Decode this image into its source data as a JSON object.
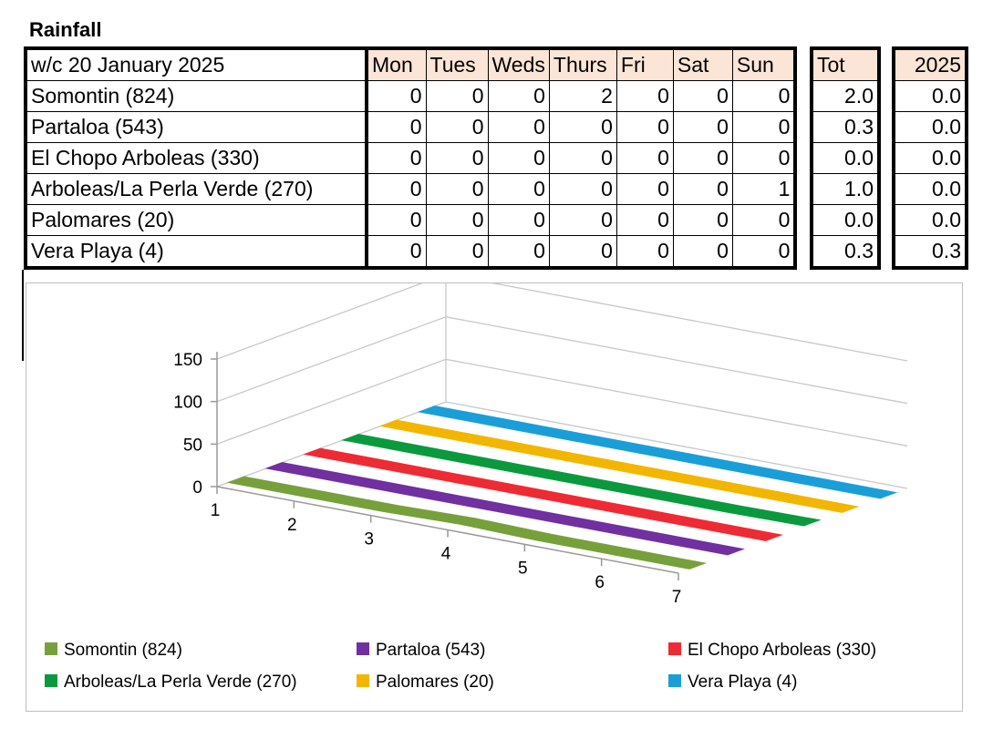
{
  "title": "Rainfall",
  "table": {
    "week_label": "w/c 20 January 2025",
    "days": [
      "Mon",
      "Tues",
      "Weds",
      "Thurs",
      "Fri",
      "Sat",
      "Sun"
    ],
    "tot_label": "Tot",
    "year_label": "2025",
    "rows": [
      {
        "name": "Somontin (824)",
        "values": [
          "0",
          "0",
          "0",
          "2",
          "0",
          "0",
          "0"
        ],
        "tot": "2.0",
        "year": "0.0"
      },
      {
        "name": "Partaloa (543)",
        "values": [
          "0",
          "0",
          "0",
          "0",
          "0",
          "0",
          "0"
        ],
        "tot": "0.3",
        "year": "0.0"
      },
      {
        "name": "El Chopo Arboleas (330)",
        "values": [
          "0",
          "0",
          "0",
          "0",
          "0",
          "0",
          "0"
        ],
        "tot": "0.0",
        "year": "0.0"
      },
      {
        "name": "Arboleas/La Perla Verde (270)",
        "values": [
          "0",
          "0",
          "0",
          "0",
          "0",
          "0",
          "1"
        ],
        "tot": "1.0",
        "year": "0.0"
      },
      {
        "name": "Palomares (20)",
        "values": [
          "0",
          "0",
          "0",
          "0",
          "0",
          "0",
          "0"
        ],
        "tot": "0.0",
        "year": "0.0"
      },
      {
        "name": "Vera Playa (4)",
        "values": [
          "0",
          "0",
          "0",
          "0",
          "0",
          "0",
          "0"
        ],
        "tot": "0.3",
        "year": "0.3"
      }
    ]
  },
  "chart_data": {
    "type": "line",
    "x": [
      1,
      2,
      3,
      4,
      5,
      6,
      7
    ],
    "x_tick_labels": [
      "1",
      "2",
      "3",
      "4",
      "5",
      "6",
      "7"
    ],
    "ylim": [
      0,
      150
    ],
    "y_ticks": [
      "0",
      "50",
      "100",
      "150"
    ],
    "grid": true,
    "legend_position": "bottom",
    "series": [
      {
        "name": "Somontin (824)",
        "color": "#77a03b",
        "values": [
          0,
          0,
          0,
          2,
          0,
          0,
          0
        ]
      },
      {
        "name": "Partaloa (543)",
        "color": "#7030a0",
        "values": [
          0,
          0,
          0,
          0,
          0,
          0,
          0
        ]
      },
      {
        "name": "El Chopo Arboleas (330)",
        "color": "#ee2b34",
        "values": [
          0,
          0,
          0,
          0,
          0,
          0,
          0
        ]
      },
      {
        "name": "Arboleas/La Perla Verde (270)",
        "color": "#0a9a3d",
        "values": [
          0,
          0,
          0,
          0,
          0,
          0,
          1
        ]
      },
      {
        "name": "Palomares (20)",
        "color": "#f2b600",
        "values": [
          0,
          0,
          0,
          0,
          0,
          0,
          0
        ]
      },
      {
        "name": "Vera Playa (4)",
        "color": "#1a9ed8",
        "values": [
          0,
          0,
          0,
          0,
          0,
          0,
          0
        ]
      }
    ]
  }
}
